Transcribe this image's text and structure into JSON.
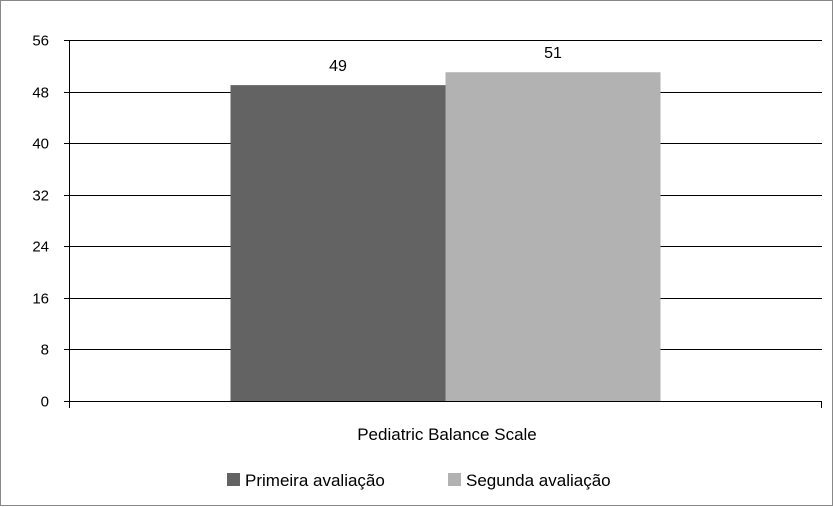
{
  "chart_data": {
    "type": "bar",
    "categories": [
      "Pediatric Balance Scale"
    ],
    "series": [
      {
        "name": "Primeira avaliação",
        "values": [
          49
        ],
        "color": "#636363"
      },
      {
        "name": "Segunda avaliação",
        "values": [
          51
        ],
        "color": "#b2b2b2"
      }
    ],
    "ylim": [
      0,
      56
    ],
    "yticks": [
      "0",
      "8",
      "16",
      "24",
      "32",
      "40",
      "48",
      "56"
    ],
    "data_labels": [
      "49",
      "51"
    ],
    "grid": true,
    "legend_position": "bottom"
  }
}
